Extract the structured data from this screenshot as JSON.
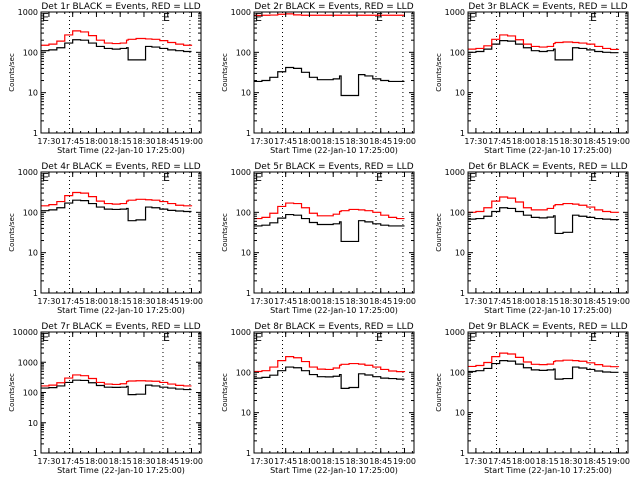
{
  "figure": {
    "xlabel": "Start Time (22-Jan-10 17:25:00)",
    "ylabel": "Counts/sec",
    "x_ticks": [
      "17:30",
      "17:45",
      "18:00",
      "18:15",
      "18:30",
      "18:45",
      "19:00"
    ],
    "x_tick_minutes": [
      5,
      20,
      35,
      50,
      65,
      80,
      95
    ],
    "x_range_minutes": [
      0,
      101
    ],
    "marker_label": "E",
    "dotted_lines_minutes": [
      18,
      77,
      94
    ],
    "colors": {
      "events": "#000000",
      "lld": "#ff0000",
      "background": "#ffffff"
    }
  },
  "chart_data": [
    {
      "type": "line",
      "title": "Det 1r BLACK = Events, RED = LLD",
      "xlabel": "Start Time (22-Jan-10 17:25:00)",
      "ylabel": "Counts/sec",
      "yscale": "log",
      "ylim": [
        1,
        1000
      ],
      "y_ticks": [
        "1",
        "10",
        "100",
        "1000"
      ],
      "x_minutes": [
        0,
        5,
        10,
        15,
        20,
        25,
        30,
        35,
        40,
        45,
        50,
        54,
        55,
        60,
        65,
        66,
        67,
        70,
        75,
        80,
        85,
        90,
        95
      ],
      "series": [
        {
          "name": "Events",
          "values": [
            110,
            115,
            130,
            170,
            205,
            200,
            170,
            140,
            125,
            120,
            125,
            130,
            65,
            65,
            65,
            140,
            140,
            135,
            125,
            115,
            110,
            105,
            105
          ]
        },
        {
          "name": "LLD",
          "values": [
            150,
            160,
            190,
            270,
            340,
            320,
            260,
            200,
            170,
            165,
            170,
            200,
            210,
            220,
            220,
            215,
            215,
            210,
            195,
            175,
            160,
            150,
            145
          ]
        }
      ]
    },
    {
      "type": "line",
      "title": "Det 2r BLACK = Events, RED = LLD",
      "xlabel": "Start Time (22-Jan-10 17:25:00)",
      "ylabel": "Counts/sec",
      "yscale": "log",
      "ylim": [
        1,
        1000
      ],
      "y_ticks": [
        "1",
        "10",
        "100",
        "1000"
      ],
      "x_minutes": [
        0,
        5,
        10,
        15,
        20,
        25,
        30,
        35,
        40,
        45,
        50,
        54,
        55,
        60,
        65,
        66,
        67,
        70,
        75,
        80,
        85,
        90,
        95
      ],
      "series": [
        {
          "name": "Events",
          "values": [
            19,
            20,
            24,
            33,
            42,
            40,
            32,
            24,
            21,
            21,
            22,
            26,
            8.5,
            8.5,
            8.5,
            28,
            28,
            26,
            22,
            20,
            19,
            19,
            19
          ]
        },
        {
          "name": "LLD",
          "values": [
            820,
            830,
            840,
            880,
            900,
            850,
            830,
            830,
            830,
            830,
            830,
            830,
            830,
            830,
            830,
            830,
            830,
            830,
            830,
            830,
            830,
            830,
            830
          ]
        }
      ]
    },
    {
      "type": "line",
      "title": "Det 3r BLACK = Events, RED = LLD",
      "xlabel": "Start Time (22-Jan-10 17:25:00)",
      "ylabel": "Counts/sec",
      "yscale": "log",
      "ylim": [
        1,
        1000
      ],
      "y_ticks": [
        "1",
        "10",
        "100",
        "1000"
      ],
      "x_minutes": [
        0,
        5,
        10,
        15,
        20,
        25,
        30,
        35,
        40,
        45,
        50,
        54,
        55,
        60,
        65,
        66,
        67,
        70,
        75,
        80,
        85,
        90,
        95
      ],
      "series": [
        {
          "name": "Events",
          "values": [
            100,
            105,
            120,
            160,
            195,
            190,
            160,
            130,
            110,
            105,
            110,
            120,
            65,
            65,
            65,
            130,
            130,
            125,
            115,
            105,
            100,
            98,
            98
          ]
        },
        {
          "name": "LLD",
          "values": [
            120,
            125,
            145,
            210,
            270,
            255,
            205,
            160,
            140,
            135,
            140,
            165,
            175,
            180,
            180,
            175,
            175,
            170,
            160,
            140,
            125,
            118,
            115
          ]
        }
      ]
    },
    {
      "type": "line",
      "title": "Det 4r BLACK = Events, RED = LLD",
      "xlabel": "Start Time (22-Jan-10 17:25:00)",
      "ylabel": "Counts/sec",
      "yscale": "log",
      "ylim": [
        1,
        1000
      ],
      "y_ticks": [
        "1",
        "10",
        "100",
        "1000"
      ],
      "x_minutes": [
        0,
        5,
        10,
        15,
        20,
        25,
        30,
        35,
        40,
        45,
        50,
        54,
        55,
        60,
        65,
        66,
        67,
        70,
        75,
        80,
        85,
        90,
        95
      ],
      "series": [
        {
          "name": "Events",
          "values": [
            110,
            115,
            130,
            170,
            200,
            195,
            165,
            135,
            120,
            118,
            120,
            125,
            62,
            65,
            65,
            135,
            135,
            130,
            120,
            112,
            108,
            105,
            105
          ]
        },
        {
          "name": "LLD",
          "values": [
            145,
            155,
            185,
            260,
            310,
            300,
            245,
            190,
            165,
            160,
            165,
            190,
            200,
            210,
            210,
            205,
            205,
            200,
            185,
            165,
            150,
            145,
            142
          ]
        }
      ]
    },
    {
      "type": "line",
      "title": "Det 5r BLACK = Events, RED = LLD",
      "xlabel": "Start Time (22-Jan-10 17:25:00)",
      "ylabel": "Counts/sec",
      "yscale": "log",
      "ylim": [
        1,
        1000
      ],
      "y_ticks": [
        "1",
        "10",
        "100",
        "1000"
      ],
      "x_minutes": [
        0,
        5,
        10,
        15,
        20,
        25,
        30,
        35,
        40,
        45,
        50,
        54,
        55,
        60,
        65,
        66,
        67,
        70,
        75,
        80,
        85,
        90,
        95
      ],
      "series": [
        {
          "name": "Events",
          "values": [
            46,
            48,
            55,
            72,
            88,
            85,
            70,
            56,
            50,
            50,
            52,
            58,
            19,
            19,
            19,
            62,
            62,
            58,
            52,
            48,
            46,
            46,
            46
          ]
        },
        {
          "name": "LLD",
          "values": [
            70,
            75,
            95,
            140,
            170,
            165,
            130,
            95,
            82,
            82,
            90,
            105,
            110,
            118,
            118,
            115,
            115,
            110,
            100,
            85,
            75,
            70,
            70
          ]
        }
      ]
    },
    {
      "type": "line",
      "title": "Det 6r BLACK = Events, RED = LLD",
      "xlabel": "Start Time (22-Jan-10 17:25:00)",
      "ylabel": "Counts/sec",
      "yscale": "log",
      "ylim": [
        1,
        1000
      ],
      "y_ticks": [
        "1",
        "10",
        "100",
        "1000"
      ],
      "x_minutes": [
        0,
        5,
        10,
        15,
        20,
        25,
        30,
        35,
        40,
        45,
        50,
        54,
        55,
        60,
        65,
        66,
        67,
        70,
        75,
        80,
        85,
        90,
        95
      ],
      "series": [
        {
          "name": "Events",
          "values": [
            68,
            70,
            80,
            105,
            130,
            125,
            105,
            85,
            75,
            73,
            76,
            82,
            30,
            32,
            32,
            85,
            85,
            80,
            75,
            70,
            68,
            66,
            65
          ]
        },
        {
          "name": "LLD",
          "values": [
            100,
            105,
            130,
            190,
            240,
            225,
            180,
            130,
            115,
            115,
            125,
            145,
            155,
            165,
            165,
            160,
            160,
            150,
            135,
            115,
            105,
            100,
            98
          ]
        }
      ]
    },
    {
      "type": "line",
      "title": "Det 7r BLACK = Events, RED = LLD",
      "xlabel": "Start Time (22-Jan-10 17:25:00)",
      "ylabel": "Counts/sec",
      "yscale": "log",
      "ylim": [
        1,
        10000
      ],
      "y_ticks": [
        "1",
        "10",
        "100",
        "1000",
        "10000"
      ],
      "x_minutes": [
        0,
        5,
        10,
        15,
        20,
        25,
        30,
        35,
        40,
        45,
        50,
        54,
        55,
        60,
        65,
        66,
        67,
        70,
        75,
        80,
        85,
        90,
        95
      ],
      "series": [
        {
          "name": "Events",
          "values": [
            140,
            145,
            165,
            215,
            255,
            250,
            210,
            170,
            150,
            148,
            150,
            160,
            85,
            88,
            88,
            175,
            175,
            165,
            150,
            140,
            130,
            125,
            125
          ]
        },
        {
          "name": "LLD",
          "values": [
            165,
            175,
            210,
            300,
            380,
            360,
            290,
            215,
            190,
            185,
            195,
            230,
            240,
            245,
            245,
            240,
            240,
            235,
            215,
            190,
            172,
            165,
            165
          ]
        }
      ]
    },
    {
      "type": "line",
      "title": "Det 8r BLACK = Events, RED = LLD",
      "xlabel": "Start Time (22-Jan-10 17:25:00)",
      "ylabel": "Counts/sec",
      "yscale": "log",
      "ylim": [
        1,
        1000
      ],
      "y_ticks": [
        "1",
        "10",
        "100",
        "1000"
      ],
      "x_minutes": [
        0,
        5,
        10,
        15,
        20,
        25,
        30,
        35,
        40,
        45,
        50,
        54,
        55,
        60,
        65,
        66,
        67,
        70,
        75,
        80,
        85,
        90,
        95
      ],
      "series": [
        {
          "name": "Events",
          "values": [
            72,
            75,
            85,
            110,
            135,
            130,
            110,
            88,
            78,
            77,
            80,
            88,
            40,
            42,
            42,
            92,
            92,
            86,
            78,
            72,
            70,
            68,
            68
          ]
        },
        {
          "name": "LLD",
          "values": [
            105,
            110,
            135,
            195,
            245,
            230,
            185,
            135,
            120,
            118,
            128,
            150,
            158,
            165,
            165,
            160,
            160,
            150,
            135,
            118,
            108,
            104,
            102
          ]
        }
      ]
    },
    {
      "type": "line",
      "title": "Det 9r BLACK = Events, RED = LLD",
      "xlabel": "Start Time (22-Jan-10 17:25:00)",
      "ylabel": "Counts/sec",
      "yscale": "log",
      "ylim": [
        1,
        1000
      ],
      "y_ticks": [
        "1",
        "10",
        "100",
        "1000"
      ],
      "x_minutes": [
        0,
        5,
        10,
        15,
        20,
        25,
        30,
        35,
        40,
        45,
        50,
        54,
        55,
        60,
        65,
        66,
        67,
        70,
        75,
        80,
        85,
        90,
        95
      ],
      "series": [
        {
          "name": "Events",
          "values": [
            105,
            110,
            125,
            165,
            195,
            190,
            160,
            130,
            115,
            112,
            115,
            120,
            68,
            70,
            70,
            135,
            135,
            128,
            118,
            108,
            102,
            100,
            100
          ]
        },
        {
          "name": "LLD",
          "values": [
            140,
            148,
            175,
            245,
            300,
            285,
            235,
            180,
            158,
            155,
            160,
            185,
            192,
            200,
            200,
            195,
            195,
            188,
            172,
            155,
            142,
            138,
            136
          ]
        }
      ]
    }
  ]
}
